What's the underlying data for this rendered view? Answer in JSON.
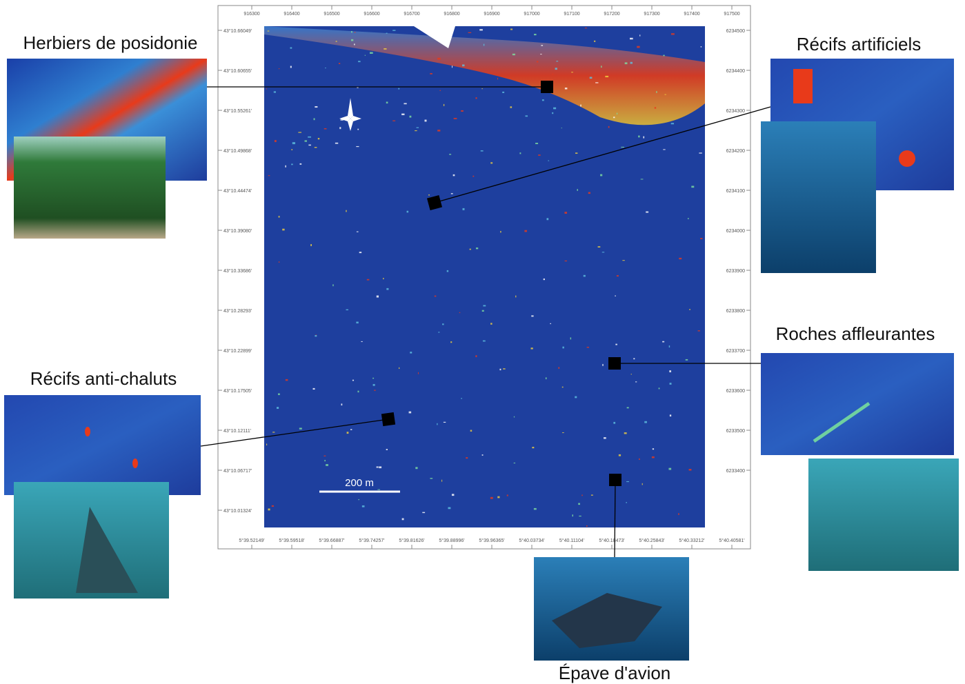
{
  "map": {
    "scale_bar": "200 m",
    "top_ticks": [
      "916300",
      "916400",
      "916500",
      "916600",
      "916700",
      "916800",
      "916900",
      "917000",
      "917100",
      "917200",
      "917300",
      "917400",
      "917500"
    ],
    "right_ticks": [
      "6234500",
      "6234400",
      "6234300",
      "6234200",
      "6234100",
      "6234000",
      "6233900",
      "6233800",
      "6233700",
      "6233600",
      "6233500",
      "6233400"
    ],
    "left_ticks": [
      "43°10.66049'",
      "43°10.60655'",
      "43°10.55261'",
      "43°10.49868'",
      "43°10.44474'",
      "43°10.39080'",
      "43°10.33686'",
      "43°10.28293'",
      "43°10.22899'",
      "43°10.17505'",
      "43°10.12111'",
      "43°10.06717'",
      "43°10.01324'"
    ],
    "bottom_ticks": [
      "5°39.52149'",
      "5°39.59518'",
      "5°39.66887'",
      "5°39.74257'",
      "5°39.81626'",
      "5°39.88996'",
      "5°39.96365'",
      "5°40.03734'",
      "5°40.11104'",
      "5°40.18473'",
      "5°40.25843'",
      "5°40.33212'",
      "5°40.40581'"
    ]
  },
  "callouts": [
    {
      "label": "Herbiers de posidonie"
    },
    {
      "label": "Récifs artificiels"
    },
    {
      "label": "Roches affleurantes"
    },
    {
      "label": "Récifs anti-chaluts"
    },
    {
      "label": "Épave d'avion"
    }
  ]
}
